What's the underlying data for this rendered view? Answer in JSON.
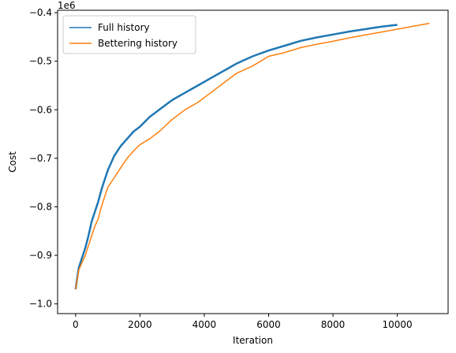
{
  "chart_data": {
    "type": "line",
    "title": "",
    "xlabel": "Iteration",
    "ylabel": "Cost",
    "y_scale_label": "1e6",
    "xlim": [
      -560,
      11580
    ],
    "ylim": [
      -1002000,
      -400000.0
    ],
    "ylim_note": "",
    "x_ticks": [
      0,
      2000,
      4000,
      6000,
      8000,
      10000
    ],
    "x_tick_labels": [
      "0",
      "2000",
      "4000",
      "6000",
      "8000",
      "10000"
    ],
    "y_ticks": [
      -1.0,
      -0.9,
      -0.8,
      -0.7,
      -0.6,
      -0.5,
      -0.4
    ],
    "y_tick_labels": [
      "−1.0",
      "−0.9",
      "−0.8",
      "−0.7",
      "−0.6",
      "−0.5",
      "−0.4"
    ],
    "grid": false,
    "legend_position": "top-left",
    "series": [
      {
        "name": "Full history",
        "color": "#1f77b4",
        "x": [
          0,
          100,
          200,
          300,
          400,
          500,
          600,
          700,
          800,
          900,
          1000,
          1200,
          1400,
          1600,
          1800,
          2000,
          2300,
          2600,
          3000,
          3400,
          3800,
          4200,
          4600,
          5000,
          5500,
          6000,
          6500,
          7000,
          7500,
          8000,
          8500,
          9000,
          9500,
          10000
        ],
        "y": [
          -0.97,
          -0.925,
          -0.905,
          -0.885,
          -0.86,
          -0.83,
          -0.81,
          -0.79,
          -0.765,
          -0.745,
          -0.725,
          -0.695,
          -0.675,
          -0.66,
          -0.645,
          -0.635,
          -0.615,
          -0.6,
          -0.58,
          -0.565,
          -0.55,
          -0.535,
          -0.52,
          -0.505,
          -0.49,
          -0.478,
          -0.468,
          -0.458,
          -0.451,
          -0.445,
          -0.439,
          -0.434,
          -0.429,
          -0.425
        ]
      },
      {
        "name": "Bettering history",
        "color": "#ff7f0e",
        "x": [
          0,
          100,
          200,
          300,
          400,
          500,
          600,
          700,
          800,
          900,
          1000,
          1200,
          1400,
          1600,
          1800,
          2000,
          2300,
          2600,
          3000,
          3400,
          3800,
          4200,
          4600,
          5000,
          5500,
          6000,
          6500,
          7000,
          7500,
          8000,
          8500,
          9000,
          9500,
          10000,
          10500,
          11000
        ],
        "y": [
          -0.97,
          -0.93,
          -0.915,
          -0.9,
          -0.88,
          -0.86,
          -0.84,
          -0.825,
          -0.8,
          -0.78,
          -0.76,
          -0.74,
          -0.72,
          -0.7,
          -0.685,
          -0.672,
          -0.66,
          -0.645,
          -0.62,
          -0.6,
          -0.585,
          -0.565,
          -0.545,
          -0.525,
          -0.51,
          -0.49,
          -0.482,
          -0.472,
          -0.465,
          -0.459,
          -0.452,
          -0.446,
          -0.44,
          -0.434,
          -0.428,
          -0.422
        ]
      }
    ]
  }
}
